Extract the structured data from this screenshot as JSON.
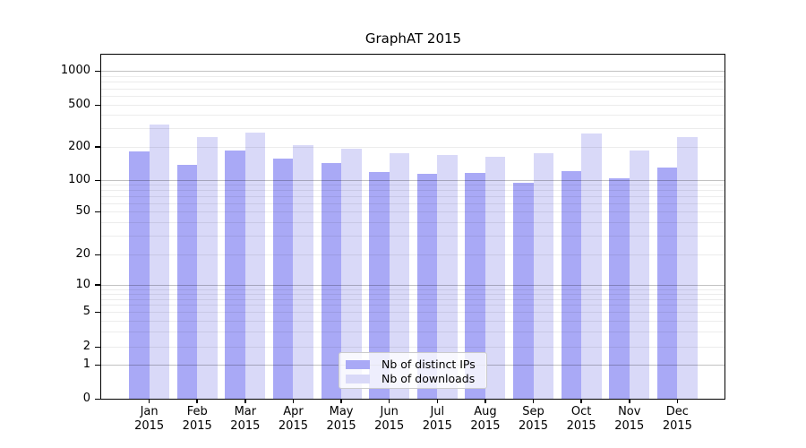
{
  "title": "GraphAT 2015",
  "chart_data": {
    "type": "bar",
    "title": "GraphAT 2015",
    "categories": [
      "Jan 2015",
      "Feb 2015",
      "Mar 2015",
      "Apr 2015",
      "May 2015",
      "Jun 2015",
      "Jul 2015",
      "Aug 2015",
      "Sep 2015",
      "Oct 2015",
      "Nov 2015",
      "Dec 2015"
    ],
    "series": [
      {
        "name": "Nb of distinct IPs",
        "color": "#a9a9f6",
        "values": [
          183,
          137,
          186,
          158,
          142,
          118,
          115,
          116,
          95,
          120,
          105,
          131
        ]
      },
      {
        "name": "Nb of downloads",
        "color": "#d9d9f8",
        "values": [
          325,
          248,
          275,
          209,
          194,
          175,
          169,
          163,
          175,
          270,
          184,
          249
        ]
      }
    ],
    "xlabel": "",
    "ylabel": "",
    "yscale": "log-like",
    "y_ticks": [
      0,
      1,
      2,
      5,
      10,
      20,
      50,
      100,
      200,
      500,
      1000
    ],
    "ylim": [
      0,
      1400
    ],
    "grid": "horizontal, minor log gridlines, darker lines at 1/10/100/1000",
    "legend_position": "lower center"
  },
  "colors": {
    "bar_distinct_ips": "#a9a9f6",
    "bar_downloads": "#d9d9f8",
    "grid_minor": "#ececec",
    "grid_major": "#c2c2c2",
    "axis": "#000000",
    "background": "#ffffff"
  }
}
